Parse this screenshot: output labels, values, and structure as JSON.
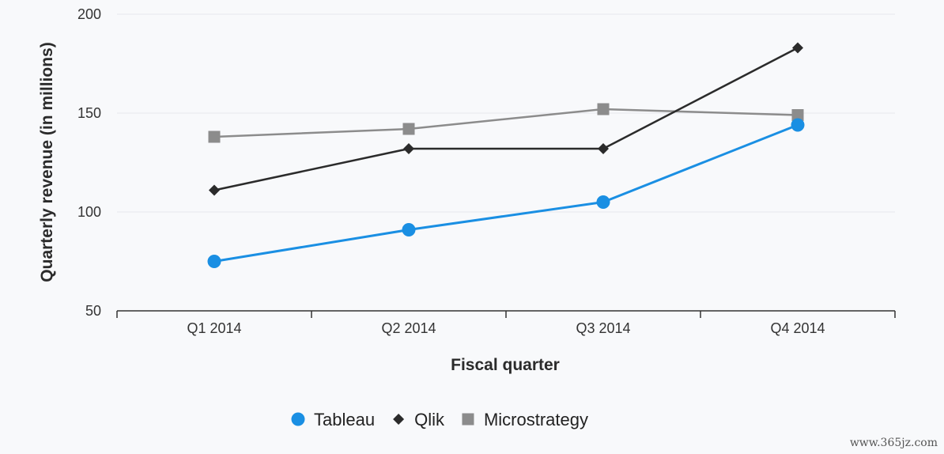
{
  "chart_data": {
    "type": "line",
    "categories": [
      "Q1 2014",
      "Q2 2014",
      "Q3 2014",
      "Q4 2014"
    ],
    "series": [
      {
        "name": "Tableau",
        "values": [
          75,
          91,
          105,
          144
        ],
        "color": "#1a8fe3",
        "marker": "circle"
      },
      {
        "name": "Qlik",
        "values": [
          111,
          132,
          132,
          183
        ],
        "color": "#2b2b2b",
        "marker": "diamond"
      },
      {
        "name": "Microstrategy",
        "values": [
          138,
          142,
          152,
          149
        ],
        "color": "#8c8c8c",
        "marker": "square"
      }
    ],
    "xlabel": "Fiscal quarter",
    "ylabel": "Quarterly revenue (in millions)",
    "ylim": [
      50,
      200
    ],
    "yticks": [
      50,
      100,
      150,
      200
    ],
    "grid": true,
    "legend_position": "bottom"
  },
  "watermark": "www.365jz.com"
}
